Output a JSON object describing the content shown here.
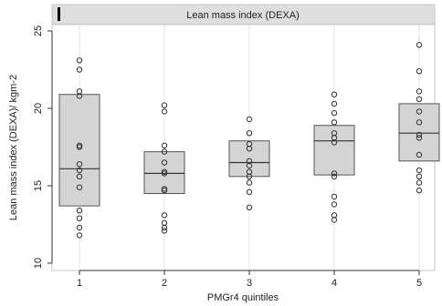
{
  "chart_data": {
    "type": "box",
    "title": "Lean mass index (DEXA)",
    "xlabel": "PMGr4 quintiles",
    "ylabel": "Lean mass index (DEXA)/ kgm-2",
    "categories": [
      "1",
      "2",
      "3",
      "4",
      "5"
    ],
    "ylim": [
      10,
      25
    ],
    "yticks": [
      10,
      15,
      20,
      25
    ],
    "grid": "vertical",
    "colors": {
      "box_fill": "#d4d4d4",
      "box_stroke": "#555555",
      "point_stroke": "#333333",
      "title_bar": "#dedede",
      "grid": "#e2e2e2"
    },
    "boxes": [
      {
        "category": "1",
        "q1": 13.7,
        "median": 16.1,
        "q3": 20.9,
        "points": [
          23.1,
          22.5,
          21.1,
          20.8,
          17.6,
          17.5,
          16.4,
          16.0,
          15.6,
          14.9,
          13.4,
          12.9,
          12.3,
          11.8
        ]
      },
      {
        "category": "2",
        "q1": 14.5,
        "median": 15.8,
        "q3": 17.2,
        "points": [
          20.2,
          19.8,
          17.6,
          17.2,
          16.5,
          15.9,
          15.8,
          14.8,
          14.7,
          13.1,
          12.6,
          12.3,
          12.1
        ]
      },
      {
        "category": "3",
        "q1": 15.6,
        "median": 16.5,
        "q3": 17.9,
        "points": [
          19.3,
          18.4,
          17.7,
          17.4,
          16.6,
          16.3,
          15.9,
          15.6,
          15.2,
          14.6,
          13.6
        ]
      },
      {
        "category": "4",
        "q1": 15.7,
        "median": 17.9,
        "q3": 18.9,
        "points": [
          20.9,
          20.3,
          19.7,
          19.1,
          18.4,
          18.1,
          17.8,
          15.8,
          15.6,
          14.3,
          13.8,
          13.1,
          12.8
        ]
      },
      {
        "category": "5",
        "q1": 16.6,
        "median": 18.4,
        "q3": 20.3,
        "points": [
          24.1,
          22.4,
          21.1,
          20.6,
          19.8,
          19.1,
          18.3,
          18.1,
          17.0,
          16.0,
          15.6,
          15.2,
          14.7
        ]
      }
    ]
  }
}
